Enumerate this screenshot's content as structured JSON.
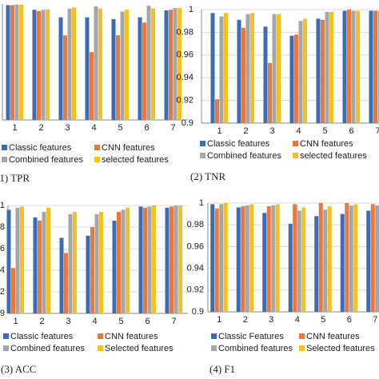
{
  "chart_data": [
    {
      "type": "bar",
      "caption": "(1) TPR",
      "categories": [
        "1",
        "2",
        "3",
        "4",
        "5",
        "6",
        "7"
      ],
      "ylim": [
        0.8,
        1
      ],
      "grid": true,
      "series": [
        {
          "name": "Classic features",
          "color": "#3a6db5",
          "values": [
            0.998,
            0.99,
            0.977,
            0.977,
            0.974,
            0.977,
            0.989
          ]
        },
        {
          "name": "CNN features",
          "color": "#e8793a",
          "values": [
            0.998,
            0.988,
            0.946,
            0.917,
            0.946,
            0.968,
            0.99
          ]
        },
        {
          "name": "Combined features",
          "color": "#a6a6a6",
          "values": [
            0.999,
            0.99,
            0.992,
            0.996,
            0.987,
            0.997,
            0.993
          ]
        },
        {
          "name": "selected features",
          "color": "#f5c121",
          "values": [
            0.999,
            0.991,
            0.994,
            0.992,
            0.99,
            0.992,
            0.993
          ]
        }
      ]
    },
    {
      "type": "bar",
      "caption": "(2) TNR",
      "categories": [
        "1",
        "2",
        "3",
        "4",
        "5",
        "6",
        "7"
      ],
      "ylim": [
        0.9,
        1
      ],
      "yticks": [
        0.9,
        0.92,
        0.94,
        0.96,
        0.98,
        1
      ],
      "grid": true,
      "series": [
        {
          "name": "Classic features",
          "color": "#3a6db5",
          "values": [
            0.997,
            0.991,
            0.985,
            0.977,
            0.992,
            0.999,
            0.999
          ]
        },
        {
          "name": "CNN features",
          "color": "#e8793a",
          "values": [
            0.921,
            0.984,
            0.953,
            0.978,
            0.991,
            1.0,
            0.999
          ]
        },
        {
          "name": "Combined features",
          "color": "#a6a6a6",
          "values": [
            0.994,
            0.996,
            0.996,
            0.99,
            0.998,
            0.999,
            0.999
          ]
        },
        {
          "name": "selected features",
          "color": "#f5c121",
          "values": [
            0.997,
            0.997,
            0.996,
            0.992,
            0.998,
            0.999,
            0.999
          ]
        }
      ]
    },
    {
      "type": "bar",
      "caption": "(3) ACC",
      "categories": [
        "1",
        "2",
        "3",
        "4",
        "5",
        "6",
        "7"
      ],
      "ylim": [
        0.9,
        1
      ],
      "yticks": [
        0.9,
        0.92,
        0.94,
        0.96,
        0.98,
        1
      ],
      "grid": true,
      "series": [
        {
          "name": "Classic features",
          "color": "#3a6db5",
          "values": [
            0.996,
            0.989,
            0.97,
            0.972,
            0.986,
            0.999,
            0.998
          ]
        },
        {
          "name": "CNN features",
          "color": "#e8793a",
          "values": [
            0.942,
            0.986,
            0.956,
            0.98,
            0.994,
            0.998,
            0.999
          ]
        },
        {
          "name": "Combined features",
          "color": "#a6a6a6",
          "values": [
            0.998,
            0.994,
            0.992,
            0.992,
            0.996,
            0.999,
            1.0
          ]
        },
        {
          "name": "Selected features",
          "color": "#f5c121",
          "values": [
            0.999,
            0.998,
            0.994,
            0.994,
            0.998,
            1.0,
            1.0
          ]
        }
      ]
    },
    {
      "type": "bar",
      "caption": "(4) F1",
      "categories": [
        "1",
        "2",
        "3",
        "4",
        "5",
        "6",
        "7"
      ],
      "ylim": [
        0.9,
        1
      ],
      "yticks": [
        0.9,
        0.92,
        0.94,
        0.96,
        0.98,
        1
      ],
      "grid": true,
      "series": [
        {
          "name": "Classic Features",
          "color": "#3a6db5",
          "values": [
            0.999,
            0.996,
            0.991,
            0.981,
            0.988,
            0.99,
            0.993
          ]
        },
        {
          "name": "CNN features",
          "color": "#e8793a",
          "values": [
            0.995,
            0.997,
            0.997,
            0.999,
            1.0,
            1.0,
            0.999
          ]
        },
        {
          "name": "Combined features",
          "color": "#a6a6a6",
          "values": [
            0.999,
            0.998,
            0.998,
            0.993,
            0.994,
            0.998,
            0.998
          ]
        },
        {
          "name": "Selected features",
          "color": "#f5c121",
          "values": [
            1.0,
            0.999,
            0.999,
            0.996,
            0.997,
            0.999,
            0.998
          ]
        }
      ]
    }
  ]
}
